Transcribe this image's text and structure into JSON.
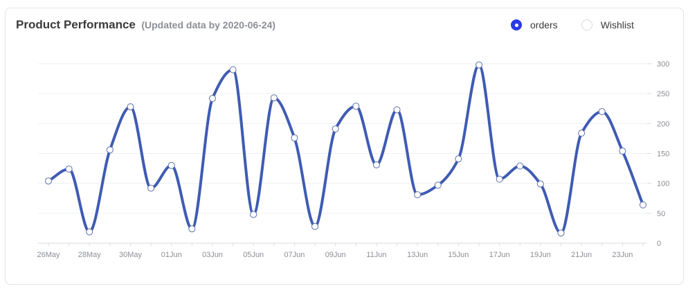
{
  "header": {
    "title": "Product Performance",
    "subtitle": "(Updated data by 2020-06-24)"
  },
  "legend": [
    {
      "name": "orders",
      "active": true,
      "color": "#2b3be8"
    },
    {
      "name": "Wishlist",
      "active": false
    }
  ],
  "chart_data": {
    "type": "line",
    "x": [
      "26May",
      "27May",
      "28May",
      "29May",
      "30May",
      "31May",
      "01Jun",
      "02Jun",
      "03Jun",
      "04Jun",
      "05Jun",
      "06Jun",
      "07Jun",
      "08Jun",
      "09Jun",
      "10Jun",
      "11Jun",
      "12Jun",
      "13Jun",
      "14Jun",
      "15Jun",
      "16Jun",
      "17Jun",
      "18Jun",
      "19Jun",
      "20Jun",
      "21Jun",
      "22Jun",
      "23Jun",
      "24Jun"
    ],
    "x_tick_labels": [
      "26May",
      "28May",
      "30May",
      "01Jun",
      "03Jun",
      "05Jun",
      "07Jun",
      "09Jun",
      "11Jun",
      "13Jun",
      "15Jun",
      "17Jun",
      "19Jun",
      "21Jun",
      "23Jun"
    ],
    "series": [
      {
        "name": "orders",
        "color": "#3f5bb3",
        "values": [
          104,
          124,
          19,
          156,
          228,
          92,
          130,
          24,
          242,
          290,
          48,
          243,
          176,
          28,
          191,
          229,
          131,
          223,
          81,
          97,
          141,
          298,
          107,
          129,
          99,
          17,
          184,
          220,
          154,
          64
        ]
      }
    ],
    "yticks": [
      0,
      50,
      100,
      150,
      200,
      250,
      300
    ],
    "ylim": [
      0,
      300
    ],
    "y_axis_position": "right",
    "grid": true,
    "smooth": true,
    "legend_position": "top-right"
  }
}
